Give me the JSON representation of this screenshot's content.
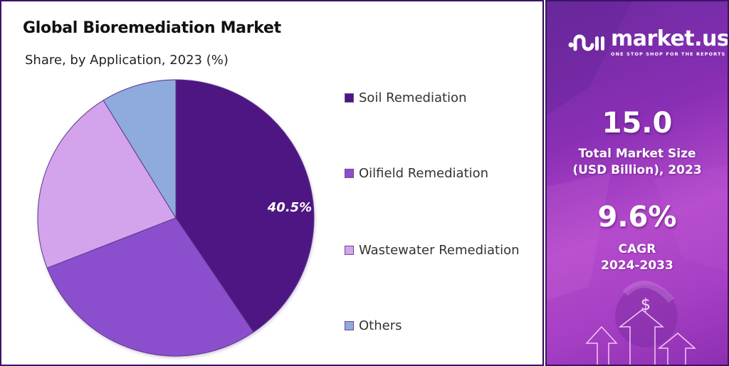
{
  "header": {
    "title": "Global Bioremediation Market",
    "subtitle": "Share, by Application, 2023 (%)"
  },
  "chart_data": {
    "type": "pie",
    "title": "Global Bioremediation Market",
    "subtitle": "Share, by Application, 2023 (%)",
    "categories": [
      "Soil Remediation",
      "Oilfield Remediation",
      "Wastewater Remediation",
      "Others"
    ],
    "values": [
      40.5,
      28.6,
      22.1,
      8.8
    ],
    "colors": [
      "#4e1583",
      "#8b4fcd",
      "#d3a4ec",
      "#8faadd"
    ],
    "data_labels": [
      "40.5%",
      "",
      "",
      ""
    ],
    "start_angle": "12 o'clock, clockwise",
    "legend_position": "right"
  },
  "legend": {
    "items": [
      {
        "label": "Soil Remediation",
        "color": "#4e1583"
      },
      {
        "label": "Oilfield Remediation",
        "color": "#8b4fcd"
      },
      {
        "label": "Wastewater Remediation",
        "color": "#d3a4ec"
      },
      {
        "label": "Others",
        "color": "#8faadd"
      }
    ]
  },
  "pie_label": "40.5%",
  "sidebar": {
    "brand": {
      "name": "market.us",
      "tagline": "ONE STOP SHOP FOR THE REPORTS"
    },
    "market_size": {
      "value": "15.0",
      "label_line1": "Total Market Size",
      "label_line2": "(USD Billion), 2023"
    },
    "cagr": {
      "value": "9.6%",
      "label_line1": "CAGR",
      "label_line2": "2024-2033"
    },
    "decoration": {
      "dollar_symbol": "$"
    }
  }
}
